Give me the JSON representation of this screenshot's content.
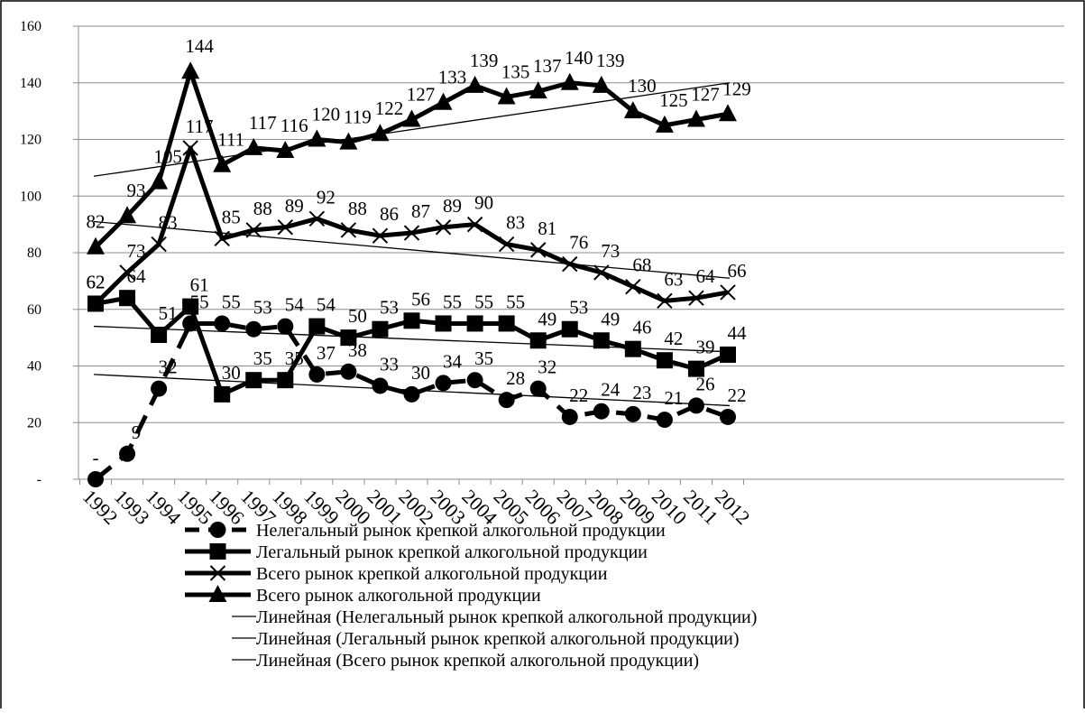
{
  "chart_data": {
    "type": "line",
    "title": "",
    "xlabel": "",
    "ylabel": "",
    "ylim": [
      0,
      160
    ],
    "y_ticks": [
      "-",
      "20",
      "40",
      "60",
      "80",
      "100",
      "120",
      "140",
      "160"
    ],
    "grid": true,
    "legend_position": "bottom",
    "categories": [
      "1992",
      "1993",
      "1994",
      "1995",
      "1996",
      "1997",
      "1998",
      "1999",
      "2000",
      "2001",
      "2002",
      "2003",
      "2004",
      "2005",
      "2006",
      "2007",
      "2008",
      "2009",
      "2010",
      "2011",
      "2012"
    ],
    "series": [
      {
        "name": "Нелегальный рынок крепкой алкогольной продукции",
        "marker": "circle",
        "dash": "dashed",
        "values": [
          0,
          9,
          32,
          55,
          55,
          53,
          54,
          37,
          38,
          33,
          30,
          34,
          35,
          28,
          32,
          22,
          24,
          23,
          21,
          26,
          22
        ],
        "labels": [
          "-",
          "9",
          "32",
          "55",
          "55",
          "53",
          "54",
          "37",
          "38",
          "33",
          "30",
          "34",
          "35",
          "28",
          "32",
          "22",
          "24",
          "23",
          "21",
          "26",
          "22"
        ]
      },
      {
        "name": "Легальный рынок крепкой алкогольной продукции",
        "marker": "square",
        "dash": "solid",
        "values": [
          62,
          64,
          51,
          61,
          30,
          35,
          35,
          54,
          50,
          53,
          56,
          55,
          55,
          55,
          49,
          53,
          49,
          46,
          42,
          39,
          44
        ],
        "labels": [
          "62",
          "64",
          "51",
          "61",
          "30",
          "35",
          "35",
          "54",
          "50",
          "53",
          "56",
          "55",
          "55",
          "55",
          "49",
          "53",
          "49",
          "46",
          "42",
          "39",
          "44"
        ]
      },
      {
        "name": "Всего рынок крепкой алкогольной продукции",
        "marker": "x",
        "dash": "solid",
        "values": [
          62,
          73,
          83,
          117,
          85,
          88,
          89,
          92,
          88,
          86,
          87,
          89,
          90,
          83,
          81,
          76,
          73,
          68,
          63,
          64,
          66
        ],
        "labels": [
          "62",
          "73",
          "83",
          "117",
          "85",
          "88",
          "89",
          "92",
          "88",
          "86",
          "87",
          "89",
          "90",
          "83",
          "81",
          "76",
          "73",
          "68",
          "63",
          "64",
          "66"
        ]
      },
      {
        "name": "Всего рынок алкогольной продукции",
        "marker": "triangle",
        "dash": "solid",
        "values": [
          82,
          93,
          105,
          144,
          111,
          117,
          116,
          120,
          119,
          122,
          127,
          133,
          139,
          135,
          137,
          140,
          139,
          130,
          125,
          127,
          129
        ],
        "labels": [
          "82",
          "93",
          "105",
          "144",
          "111",
          "117",
          "116",
          "120",
          "119",
          "122",
          "127",
          "133",
          "139",
          "135",
          "137",
          "140",
          "139",
          "130",
          "125",
          "127",
          "129"
        ]
      }
    ],
    "trendlines": [
      {
        "name": "Линейная (Нелегальный рынок крепкой алкогольной продукции)",
        "start": 37,
        "end": 26
      },
      {
        "name": "Линейная (Легальный рынок крепкой алкогольной продукции)",
        "start": 54,
        "end": 45
      },
      {
        "name": "Линейная (Всего рынок крепкой алкогольной продукции)",
        "start": 91,
        "end": 71
      },
      {
        "name": "",
        "start": 107,
        "end": 140
      }
    ],
    "legend": [
      "Нелегальный рынок крепкой алкогольной продукции",
      "Легальный рынок крепкой алкогольной продукции",
      "Всего рынок крепкой алкогольной продукции",
      "Всего рынок алкогольной продукции",
      "Линейная (Нелегальный рынок крепкой алкогольной продукции)",
      "Линейная (Легальный рынок крепкой алкогольной продукции)",
      "Линейная (Всего рынок крепкой алкогольной продукции)"
    ]
  }
}
